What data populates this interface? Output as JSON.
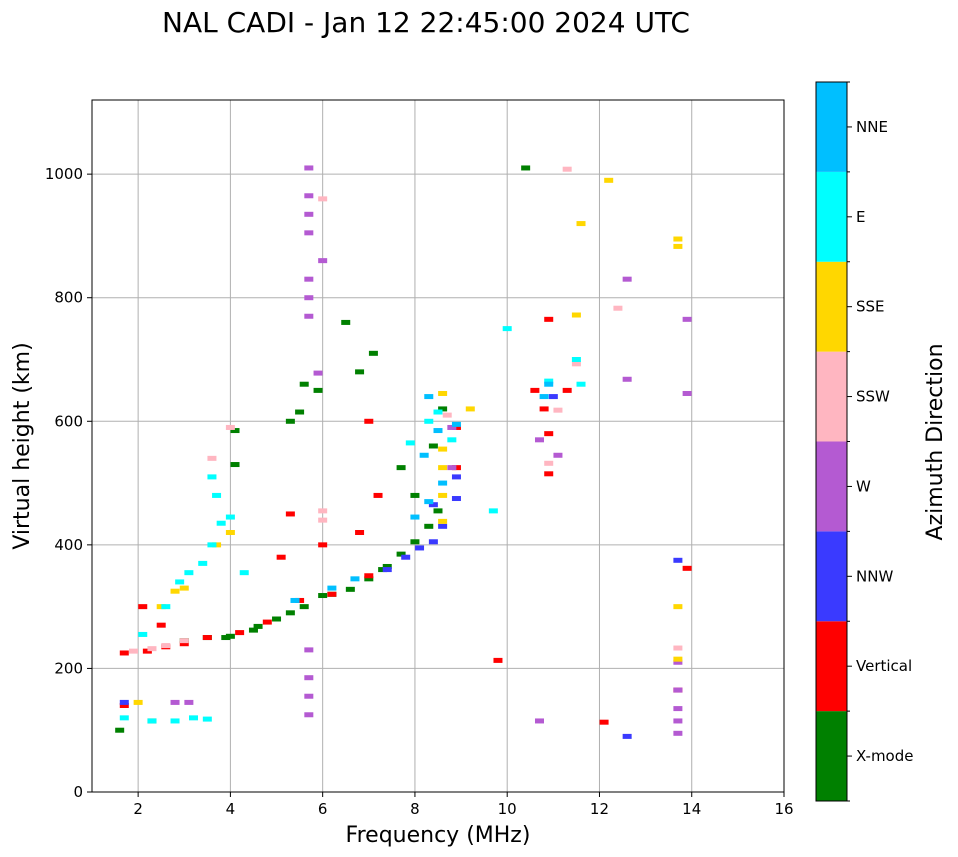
{
  "chart_data": {
    "type": "scatter",
    "title": "NAL CADI - Jan 12 22:45:00 2024 UTC",
    "xlabel": "Frequency (MHz)",
    "ylabel": "Virtual height (km)",
    "xlim": [
      1,
      16
    ],
    "ylim": [
      0,
      1120
    ],
    "xticks": [
      2,
      4,
      6,
      8,
      10,
      12,
      14,
      16
    ],
    "yticks": [
      0,
      200,
      400,
      600,
      800,
      1000
    ],
    "grid": true,
    "colorbar": {
      "title": "Azimuth Direction",
      "categories": [
        {
          "name": "X-mode",
          "color": "#008000"
        },
        {
          "name": "Vertical",
          "color": "#ff0000"
        },
        {
          "name": "NNW",
          "color": "#3a3aff"
        },
        {
          "name": "W",
          "color": "#b45ad2"
        },
        {
          "name": "SSW",
          "color": "#ffb6c1"
        },
        {
          "name": "SSE",
          "color": "#ffd700"
        },
        {
          "name": "E",
          "color": "#00ffff"
        },
        {
          "name": "NNE",
          "color": "#00bfff"
        }
      ]
    },
    "series": [
      {
        "name": "X-mode",
        "points": [
          [
            1.6,
            100
          ],
          [
            2.3,
            115
          ],
          [
            3.0,
            245
          ],
          [
            3.5,
            250
          ],
          [
            4.0,
            252
          ],
          [
            4.5,
            262
          ],
          [
            5.0,
            280
          ],
          [
            5.3,
            290
          ],
          [
            5.6,
            300
          ],
          [
            6.2,
            320
          ],
          [
            6.6,
            328
          ],
          [
            7.0,
            345
          ],
          [
            7.4,
            365
          ],
          [
            7.7,
            385
          ],
          [
            8.0,
            405
          ],
          [
            8.3,
            430
          ],
          [
            8.5,
            455
          ],
          [
            5.3,
            600
          ],
          [
            5.5,
            615
          ],
          [
            5.6,
            660
          ],
          [
            5.9,
            650
          ],
          [
            6.5,
            760
          ],
          [
            7.1,
            710
          ],
          [
            6.8,
            680
          ],
          [
            8.4,
            560
          ],
          [
            8.6,
            620
          ],
          [
            10.4,
            1010
          ],
          [
            4.1,
            530
          ],
          [
            4.1,
            585
          ],
          [
            7.7,
            525
          ],
          [
            8.0,
            480
          ],
          [
            3.9,
            250
          ],
          [
            4.6,
            268
          ],
          [
            6.0,
            318
          ],
          [
            7.3,
            360
          ]
        ]
      },
      {
        "name": "Vertical",
        "points": [
          [
            1.7,
            225
          ],
          [
            2.2,
            228
          ],
          [
            2.6,
            235
          ],
          [
            3.0,
            240
          ],
          [
            3.5,
            250
          ],
          [
            4.2,
            258
          ],
          [
            4.8,
            275
          ],
          [
            5.5,
            310
          ],
          [
            6.2,
            320
          ],
          [
            7.0,
            350
          ],
          [
            5.1,
            380
          ],
          [
            5.3,
            450
          ],
          [
            6.0,
            400
          ],
          [
            6.8,
            420
          ],
          [
            7.2,
            480
          ],
          [
            8.9,
            525
          ],
          [
            7.0,
            600
          ],
          [
            8.9,
            590
          ],
          [
            10.6,
            650
          ],
          [
            10.8,
            620
          ],
          [
            10.9,
            580
          ],
          [
            10.9,
            515
          ],
          [
            11.3,
            650
          ],
          [
            9.8,
            213
          ],
          [
            12.1,
            113
          ],
          [
            13.7,
            165
          ],
          [
            13.9,
            362
          ],
          [
            10.9,
            765
          ],
          [
            1.7,
            140
          ],
          [
            2.1,
            300
          ],
          [
            2.5,
            270
          ]
        ]
      },
      {
        "name": "NNW",
        "points": [
          [
            7.4,
            360
          ],
          [
            7.8,
            380
          ],
          [
            8.1,
            395
          ],
          [
            8.4,
            405
          ],
          [
            8.6,
            430
          ],
          [
            8.9,
            475
          ],
          [
            8.9,
            510
          ],
          [
            11.0,
            640
          ],
          [
            12.6,
            90
          ],
          [
            13.7,
            375
          ],
          [
            8.4,
            465
          ],
          [
            1.7,
            145
          ]
        ]
      },
      {
        "name": "W",
        "points": [
          [
            5.7,
            1010
          ],
          [
            5.7,
            965
          ],
          [
            5.7,
            935
          ],
          [
            5.7,
            905
          ],
          [
            6.0,
            860
          ],
          [
            5.7,
            830
          ],
          [
            5.7,
            800
          ],
          [
            5.7,
            770
          ],
          [
            5.9,
            678
          ],
          [
            8.8,
            590
          ],
          [
            8.8,
            525
          ],
          [
            10.7,
            570
          ],
          [
            11.1,
            545
          ],
          [
            12.6,
            830
          ],
          [
            12.6,
            668
          ],
          [
            13.9,
            765
          ],
          [
            13.9,
            645
          ],
          [
            13.7,
            210
          ],
          [
            13.7,
            165
          ],
          [
            13.7,
            135
          ],
          [
            13.7,
            115
          ],
          [
            13.7,
            95
          ],
          [
            10.7,
            115
          ],
          [
            5.7,
            125
          ],
          [
            5.7,
            155
          ],
          [
            5.7,
            185
          ],
          [
            5.7,
            230
          ],
          [
            2.8,
            145
          ],
          [
            3.1,
            145
          ]
        ]
      },
      {
        "name": "SSW",
        "points": [
          [
            1.9,
            228
          ],
          [
            2.3,
            232
          ],
          [
            2.6,
            237
          ],
          [
            3.0,
            245
          ],
          [
            6.0,
            960
          ],
          [
            11.3,
            1008
          ],
          [
            12.4,
            783
          ],
          [
            11.5,
            693
          ],
          [
            10.9,
            532
          ],
          [
            11.1,
            618
          ],
          [
            13.7,
            233
          ],
          [
            3.6,
            540
          ],
          [
            4.0,
            590
          ],
          [
            6.0,
            455
          ],
          [
            6.0,
            440
          ],
          [
            8.7,
            610
          ]
        ]
      },
      {
        "name": "SSE",
        "points": [
          [
            2.0,
            145
          ],
          [
            2.5,
            300
          ],
          [
            2.8,
            325
          ],
          [
            3.0,
            330
          ],
          [
            3.7,
            400
          ],
          [
            4.0,
            420
          ],
          [
            8.6,
            480
          ],
          [
            8.6,
            525
          ],
          [
            8.6,
            555
          ],
          [
            8.6,
            645
          ],
          [
            9.2,
            620
          ],
          [
            11.6,
            920
          ],
          [
            12.2,
            990
          ],
          [
            11.5,
            772
          ],
          [
            13.7,
            895
          ],
          [
            13.7,
            883
          ],
          [
            13.7,
            300
          ],
          [
            13.7,
            215
          ],
          [
            8.6,
            438
          ]
        ]
      },
      {
        "name": "E",
        "points": [
          [
            1.7,
            120
          ],
          [
            2.3,
            115
          ],
          [
            2.8,
            115
          ],
          [
            3.2,
            120
          ],
          [
            3.5,
            118
          ],
          [
            2.1,
            255
          ],
          [
            2.6,
            300
          ],
          [
            2.9,
            340
          ],
          [
            3.1,
            355
          ],
          [
            3.4,
            370
          ],
          [
            3.6,
            400
          ],
          [
            3.8,
            435
          ],
          [
            4.0,
            445
          ],
          [
            4.3,
            355
          ],
          [
            3.7,
            480
          ],
          [
            3.6,
            510
          ],
          [
            9.7,
            455
          ],
          [
            10.0,
            750
          ],
          [
            11.5,
            700
          ],
          [
            11.6,
            660
          ],
          [
            10.9,
            665
          ],
          [
            8.3,
            600
          ],
          [
            8.5,
            615
          ],
          [
            8.8,
            570
          ],
          [
            7.9,
            565
          ]
        ]
      },
      {
        "name": "NNE",
        "points": [
          [
            8.3,
            640
          ],
          [
            8.2,
            545
          ],
          [
            8.5,
            585
          ],
          [
            8.6,
            500
          ],
          [
            8.3,
            470
          ],
          [
            8.0,
            445
          ],
          [
            10.8,
            640
          ],
          [
            10.9,
            660
          ],
          [
            8.9,
            595
          ],
          [
            6.2,
            330
          ],
          [
            6.7,
            345
          ],
          [
            5.4,
            310
          ]
        ]
      }
    ]
  }
}
